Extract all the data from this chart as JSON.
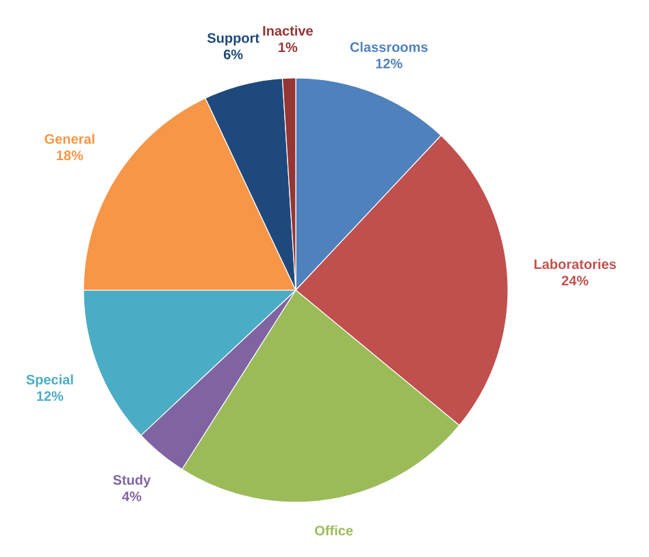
{
  "chart_data": {
    "type": "pie",
    "categories": [
      "Classrooms",
      "Laboratories",
      "Office",
      "Study",
      "Special",
      "General",
      "Support",
      "Inactive"
    ],
    "values": [
      12,
      24,
      23,
      4,
      12,
      18,
      6,
      1
    ],
    "value_labels": [
      "12%",
      "24%",
      null,
      "4%",
      "12%",
      "18%",
      "6%",
      "1%"
    ],
    "colors": [
      "#4f81bd",
      "#c0504d",
      "#9bbb59",
      "#8064a2",
      "#4bacc6",
      "#f79646",
      "#1f497d",
      "#943634"
    ]
  }
}
